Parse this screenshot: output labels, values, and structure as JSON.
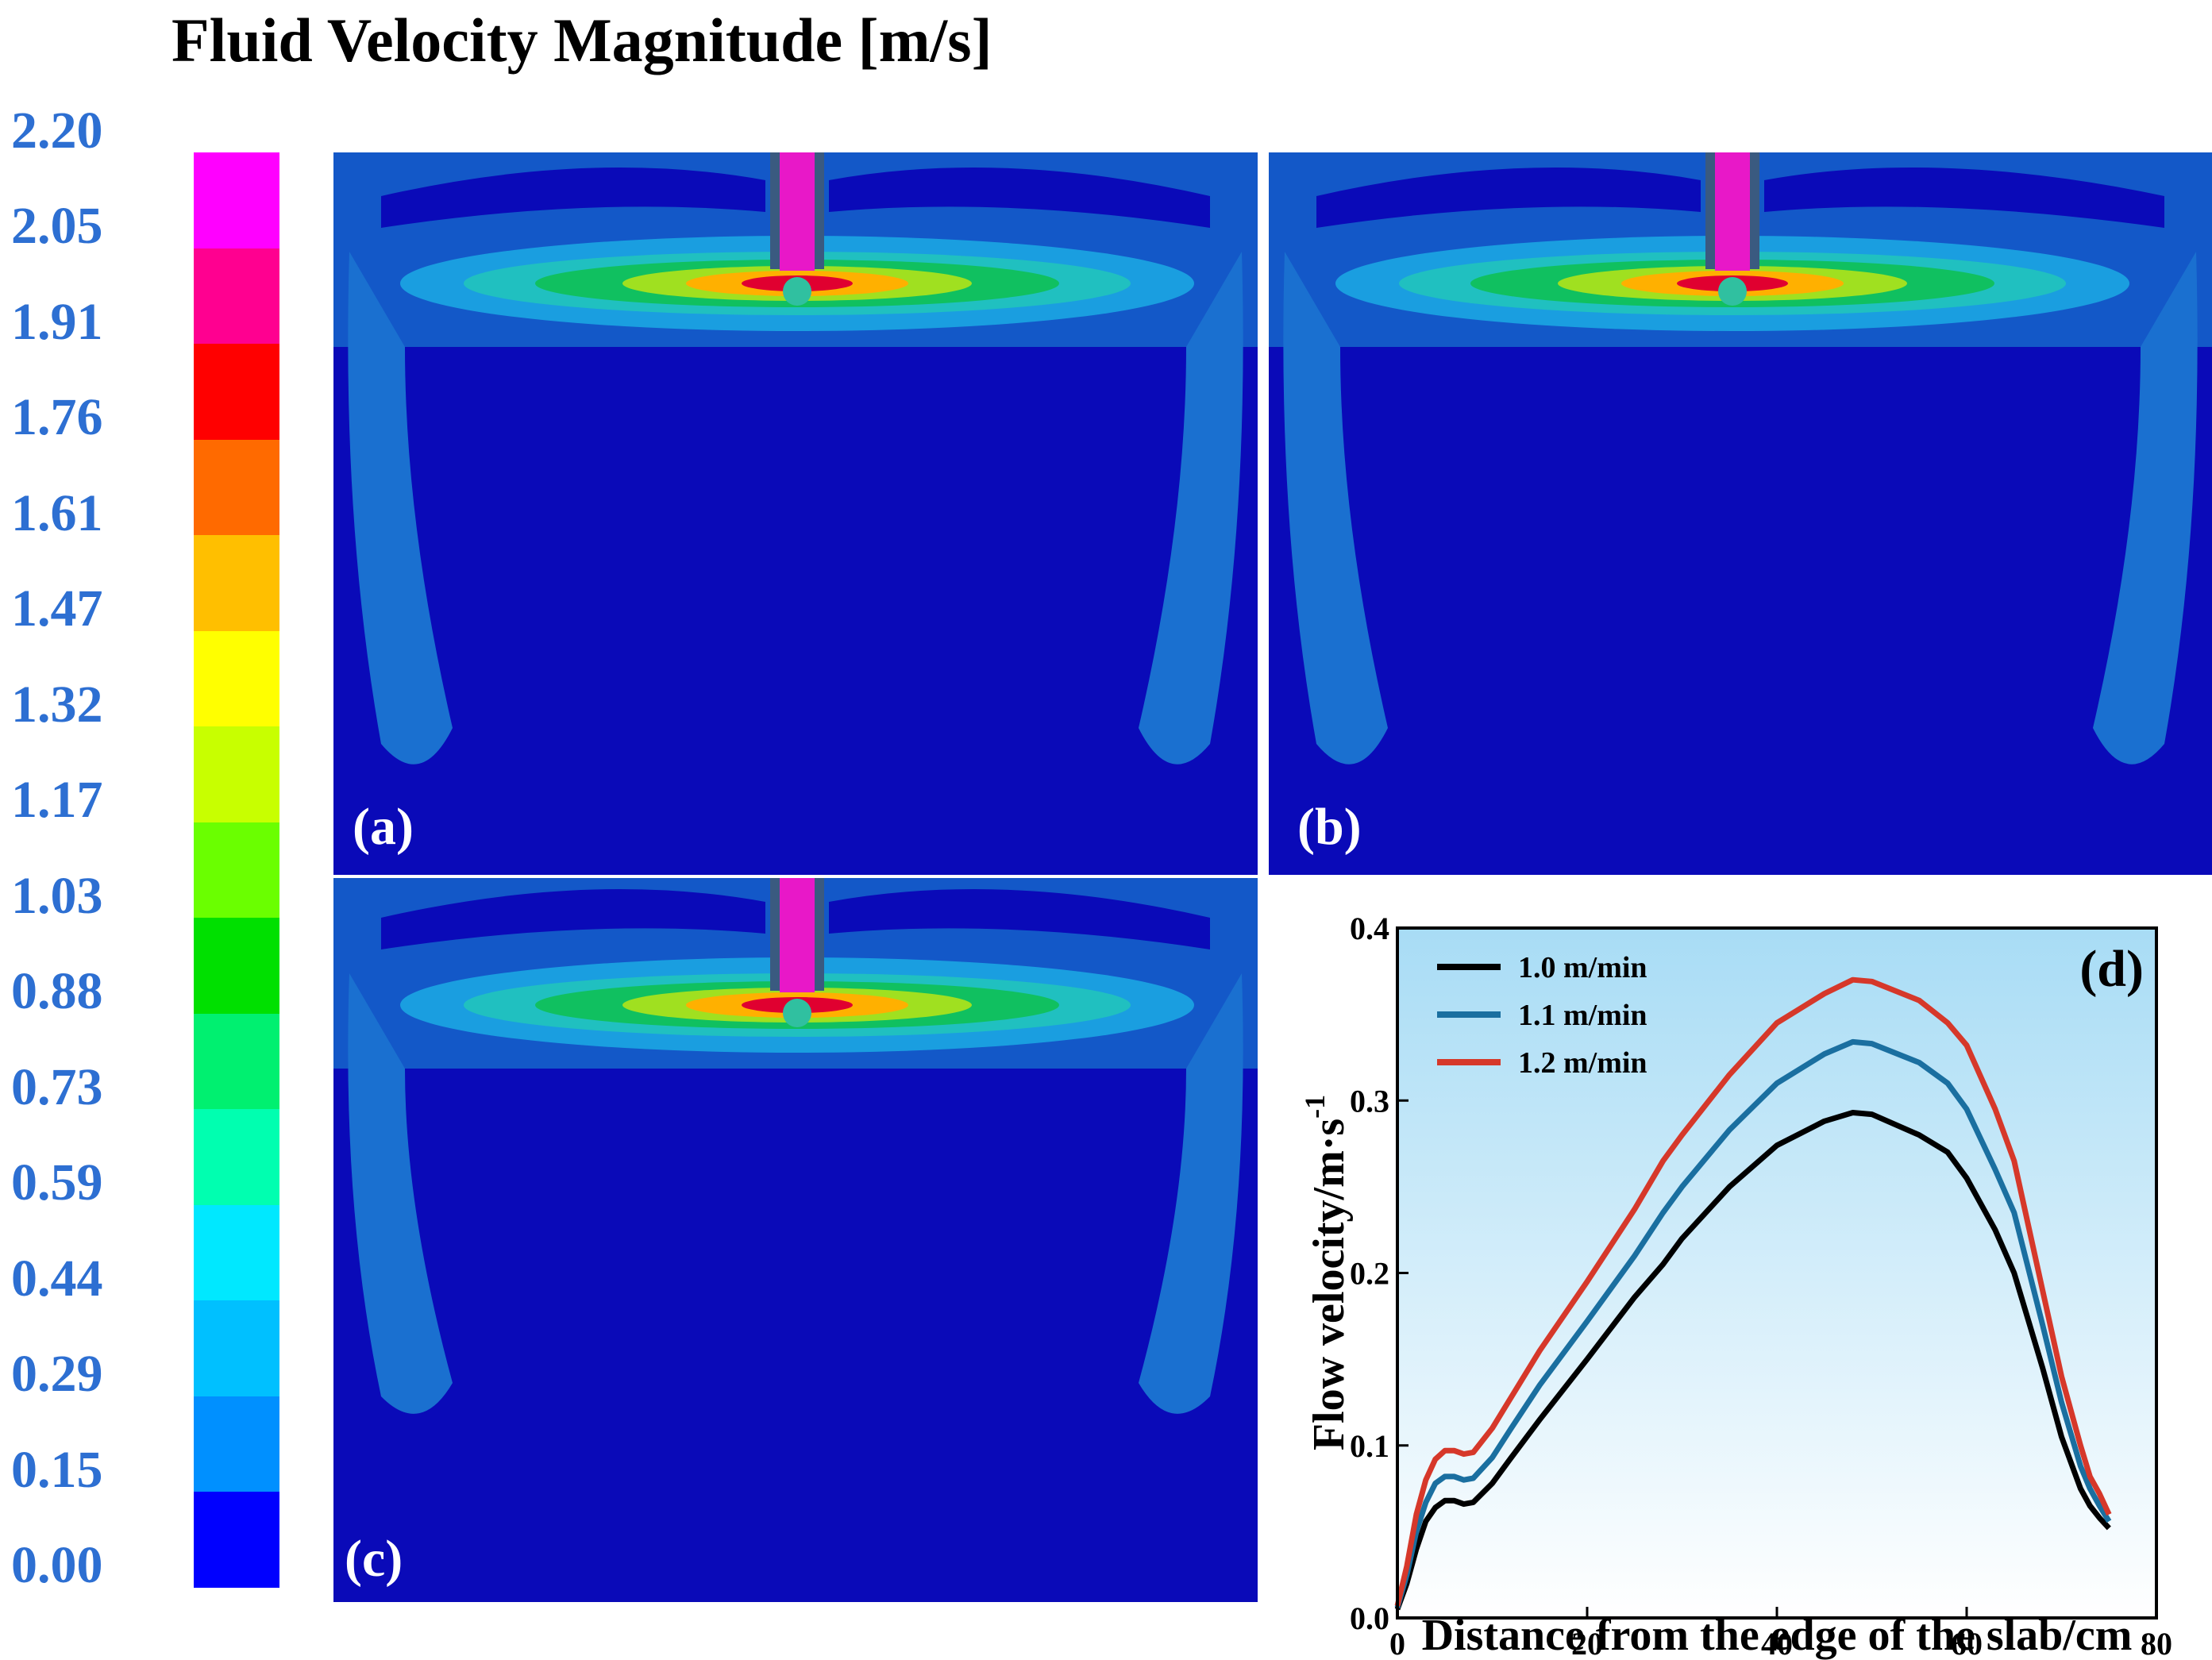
{
  "title": "Fluid Velocity Magnitude [m/s]",
  "colorbar": {
    "labels": [
      "2.20",
      "2.05",
      "1.91",
      "1.76",
      "1.61",
      "1.47",
      "1.32",
      "1.17",
      "1.03",
      "0.88",
      "0.73",
      "0.59",
      "0.44",
      "0.29",
      "0.15",
      "0.00"
    ],
    "colors": [
      "#ff00ff",
      "#ff0090",
      "#ff0000",
      "#ff6a00",
      "#ffbf00",
      "#ffff00",
      "#c8ff00",
      "#6aff00",
      "#00e000",
      "#00f070",
      "#00ffb0",
      "#00e8ff",
      "#00c0ff",
      "#0090ff",
      "#0000ff"
    ]
  },
  "panels": [
    {
      "id": "a",
      "label": "(a)"
    },
    {
      "id": "b",
      "label": "(b)"
    },
    {
      "id": "c",
      "label": "(c)"
    }
  ],
  "chart_data": {
    "type": "line",
    "panel_label": "(d)",
    "xlabel": "Distance from the edge of the slab/cm",
    "ylabel": "Flow velocity/m·s",
    "ylabel_sup": "-1",
    "xlim": [
      0,
      80
    ],
    "ylim": [
      0,
      0.4
    ],
    "xticks": [
      0,
      20,
      40,
      60,
      80
    ],
    "yticks": [
      0.0,
      0.1,
      0.2,
      0.3,
      0.4
    ],
    "xtick_labels": [
      "0",
      "20",
      "40",
      "60",
      "80"
    ],
    "ytick_labels": [
      "0.0",
      "0.1",
      "0.2",
      "0.3",
      "0.4"
    ],
    "legend_position": "top-left",
    "grid": false,
    "x": [
      0,
      1,
      2,
      3,
      4,
      5,
      6,
      7,
      8,
      10,
      12,
      15,
      20,
      25,
      28,
      30,
      35,
      40,
      45,
      48,
      50,
      55,
      58,
      60,
      63,
      65,
      68,
      70,
      72,
      73,
      74,
      75
    ],
    "series": [
      {
        "name": "1.0 m/min",
        "color": "#000000",
        "values": [
          0.005,
          0.02,
          0.04,
          0.056,
          0.064,
          0.068,
          0.068,
          0.066,
          0.067,
          0.078,
          0.093,
          0.115,
          0.15,
          0.186,
          0.205,
          0.22,
          0.25,
          0.274,
          0.288,
          0.293,
          0.292,
          0.28,
          0.27,
          0.255,
          0.225,
          0.2,
          0.145,
          0.105,
          0.075,
          0.065,
          0.058,
          0.052
        ]
      },
      {
        "name": "1.1 m/min",
        "color": "#1a6fa0",
        "values": [
          0.006,
          0.025,
          0.05,
          0.067,
          0.078,
          0.082,
          0.082,
          0.08,
          0.081,
          0.093,
          0.11,
          0.135,
          0.172,
          0.21,
          0.235,
          0.25,
          0.283,
          0.31,
          0.327,
          0.334,
          0.333,
          0.322,
          0.31,
          0.295,
          0.26,
          0.235,
          0.17,
          0.125,
          0.088,
          0.075,
          0.065,
          0.056
        ]
      },
      {
        "name": "1.2 m/min",
        "color": "#d6382a",
        "values": [
          0.007,
          0.03,
          0.06,
          0.08,
          0.092,
          0.097,
          0.097,
          0.095,
          0.096,
          0.11,
          0.128,
          0.155,
          0.195,
          0.237,
          0.265,
          0.28,
          0.315,
          0.345,
          0.362,
          0.37,
          0.369,
          0.358,
          0.345,
          0.332,
          0.295,
          0.265,
          0.19,
          0.14,
          0.1,
          0.082,
          0.072,
          0.06
        ]
      }
    ]
  }
}
